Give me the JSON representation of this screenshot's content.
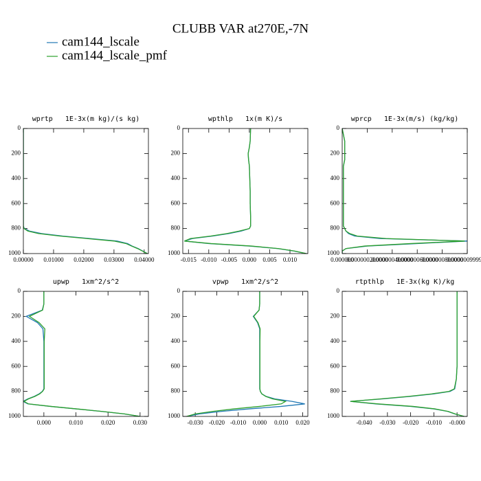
{
  "title": "CLUBB VAR at270E,-7N",
  "chart_data": [
    {
      "type": "line",
      "title": "wprtp   1E-3x(m kg)/(s kg)",
      "y": [
        0,
        100,
        150,
        200,
        250,
        300,
        400,
        500,
        600,
        700,
        780,
        800,
        820,
        840,
        860,
        880,
        900,
        920,
        940,
        960,
        980,
        1000
      ],
      "series": [
        {
          "name": "cam144_lscale",
          "color": "#1f77b4",
          "values": [
            0,
            0,
            0,
            0,
            0,
            0,
            0,
            0,
            0,
            0,
            0,
            0.0003,
            0.002,
            0.006,
            0.013,
            0.022,
            0.031,
            0.0345,
            0.036,
            0.038,
            0.0395,
            0.041
          ]
        },
        {
          "name": "cam144_lscale_pmf",
          "color": "#2ca02c",
          "values": [
            0,
            0,
            0,
            0,
            0,
            0,
            0,
            0,
            0,
            0,
            0,
            0.0002,
            0.0015,
            0.005,
            0.012,
            0.021,
            0.03,
            0.034,
            0.0358,
            0.0378,
            0.0394,
            0.041
          ]
        }
      ],
      "xlim": [
        0,
        0.0414
      ],
      "xticks": [
        {
          "value": 0,
          "label": "0.00000"
        },
        {
          "value": 0.01,
          "label": "0.01000"
        },
        {
          "value": 0.02,
          "label": "0.02000"
        },
        {
          "value": 0.03,
          "label": "0.03000"
        },
        {
          "value": 0.04,
          "label": "0.04000"
        }
      ],
      "ylim": [
        1000,
        0
      ],
      "yticks": [
        0,
        200,
        400,
        600,
        800,
        1000
      ]
    },
    {
      "type": "line",
      "title": "wpthlp   1x(m K)/s",
      "y": [
        0,
        100,
        150,
        200,
        250,
        300,
        400,
        500,
        600,
        700,
        780,
        800,
        820,
        840,
        860,
        880,
        900,
        920,
        940,
        960,
        980,
        1000
      ],
      "series": [
        {
          "name": "cam144_lscale",
          "color": "#1f77b4",
          "values": [
            0.0003,
            0.0002,
            0.0,
            -0.0003,
            -0.0002,
            0.0,
            0.0001,
            0.0002,
            0.0002,
            0.0003,
            0.0003,
            0.0,
            -0.002,
            -0.005,
            -0.009,
            -0.014,
            -0.016,
            -0.01,
            0.0,
            0.007,
            0.011,
            0.014
          ]
        },
        {
          "name": "cam144_lscale_pmf",
          "color": "#2ca02c",
          "values": [
            0.0003,
            0.0002,
            0.0,
            -0.0003,
            -0.0002,
            0.0,
            0.0001,
            0.0002,
            0.0002,
            0.0003,
            0.0003,
            0.0,
            -0.0025,
            -0.0055,
            -0.0095,
            -0.0145,
            -0.016,
            -0.0095,
            0.0005,
            0.0072,
            0.0112,
            0.014
          ]
        }
      ],
      "xlim": [
        -0.0164,
        0.0144
      ],
      "xticks": [
        -0.015,
        {
          "value": -0.01,
          "label": "-0.010"
        },
        -0.005,
        {
          "value": 0,
          "label": "0.000"
        },
        0.005,
        {
          "value": 0.01,
          "label": "0.010"
        }
      ],
      "ylim": [
        1000,
        0
      ],
      "yticks": [
        0,
        200,
        400,
        600,
        800,
        1000
      ]
    },
    {
      "type": "line",
      "title": "wprcp   1E-3x(m/s) (kg/kg)",
      "y": [
        0,
        100,
        150,
        200,
        250,
        300,
        400,
        500,
        600,
        700,
        780,
        800,
        820,
        840,
        860,
        880,
        900,
        920,
        940,
        960,
        980,
        1000
      ],
      "series": [
        {
          "name": "cam144_lscale",
          "color": "#1f77b4",
          "values": [
            0,
            2e-08,
            2e-08,
            2e-08,
            2e-08,
            1e-08,
            1e-08,
            1e-08,
            1e-08,
            1e-08,
            1e-08,
            2e-08,
            3e-08,
            5e-08,
            1e-07,
            3e-07,
            1e-06,
            6e-07,
            2e-07,
            3e-08,
            0,
            0
          ]
        },
        {
          "name": "cam144_lscale_pmf",
          "color": "#2ca02c",
          "values": [
            0,
            2e-08,
            2e-08,
            2e-08,
            2e-08,
            1e-08,
            1e-08,
            1e-08,
            1e-08,
            1e-08,
            1e-08,
            2e-08,
            3e-08,
            6e-08,
            1.2e-07,
            3.5e-07,
            9.8e-07,
            5.5e-07,
            1.8e-07,
            3e-08,
            0,
            0
          ]
        }
      ],
      "xlim": [
        0,
        1e-06
      ],
      "xticks": [
        {
          "value": 0,
          "label": "0.000000"
        },
        {
          "value": 2e-07,
          "label": "0.000000200000"
        },
        {
          "value": 4e-07,
          "label": "0.000000400000"
        },
        {
          "value": 6e-07,
          "label": "0.000000600000"
        },
        {
          "value": 8e-07,
          "label": "0.000000800000"
        },
        {
          "value": 9.99999e-07,
          "label": "0.000000999999"
        }
      ],
      "ylim": [
        1000,
        0
      ],
      "yticks": [
        0,
        200,
        400,
        600,
        800,
        1000
      ]
    },
    {
      "type": "line",
      "title": "upwp   1xm^2/s^2",
      "y": [
        0,
        100,
        150,
        200,
        250,
        300,
        400,
        500,
        600,
        700,
        780,
        800,
        820,
        840,
        860,
        880,
        900,
        920,
        940,
        960,
        980,
        1000
      ],
      "series": [
        {
          "name": "cam144_lscale",
          "color": "#1f77b4",
          "values": [
            0,
            0,
            -0.0005,
            -0.0055,
            -0.002,
            -0.0003,
            0,
            0,
            0,
            0,
            0,
            -0.0005,
            -0.0015,
            -0.003,
            -0.005,
            -0.0065,
            -0.005,
            0.002,
            0.01,
            0.018,
            0.025,
            0.03
          ]
        },
        {
          "name": "cam144_lscale_pmf",
          "color": "#2ca02c",
          "values": [
            0,
            0,
            -0.0004,
            -0.0045,
            -0.0015,
            0.0003,
            0.0001,
            0.0001,
            0.0001,
            0.0001,
            0.0001,
            -0.0004,
            -0.0013,
            -0.0028,
            -0.0048,
            -0.0062,
            -0.0048,
            0.0022,
            0.0102,
            0.0182,
            0.0252,
            0.03
          ]
        }
      ],
      "xlim": [
        -0.0064,
        0.0326
      ],
      "xticks": [
        {
          "value": 0,
          "label": "0.000"
        },
        {
          "value": 0.01,
          "label": "0.010"
        },
        {
          "value": 0.02,
          "label": "0.020"
        },
        {
          "value": 0.03,
          "label": "0.030"
        }
      ],
      "ylim": [
        1000,
        0
      ],
      "yticks": [
        0,
        200,
        400,
        600,
        800,
        1000
      ]
    },
    {
      "type": "line",
      "title": "vpwp   1xm^2/s^2",
      "y": [
        0,
        100,
        150,
        200,
        250,
        300,
        400,
        500,
        600,
        700,
        780,
        800,
        820,
        840,
        860,
        880,
        900,
        920,
        940,
        960,
        980,
        1000
      ],
      "series": [
        {
          "name": "cam144_lscale",
          "color": "#1f77b4",
          "values": [
            0,
            0,
            -0.0003,
            -0.003,
            -0.001,
            0,
            0,
            0,
            0,
            0,
            0,
            0.0003,
            0.001,
            0.003,
            0.007,
            0.015,
            0.021,
            0.01,
            -0.005,
            -0.018,
            -0.028,
            -0.034
          ]
        },
        {
          "name": "cam144_lscale_pmf",
          "color": "#2ca02c",
          "values": [
            0,
            0,
            -0.0003,
            -0.0028,
            -0.0008,
            0.0002,
            0.0001,
            0.0001,
            0.0001,
            0.0001,
            0.0001,
            0.0003,
            0.001,
            0.0028,
            0.006,
            0.012,
            0.01,
            0.0,
            -0.012,
            -0.022,
            -0.03,
            -0.034
          ]
        }
      ],
      "xlim": [
        -0.0358,
        0.0224
      ],
      "xticks": [
        {
          "value": -0.03,
          "label": "-0.030"
        },
        {
          "value": -0.02,
          "label": "-0.020"
        },
        {
          "value": -0.01,
          "label": "-0.010"
        },
        {
          "value": 0,
          "label": "0.000"
        },
        {
          "value": 0.01,
          "label": "0.010"
        },
        {
          "value": 0.02,
          "label": "0.020"
        }
      ],
      "ylim": [
        1000,
        0
      ],
      "yticks": [
        0,
        200,
        400,
        600,
        800,
        1000
      ]
    },
    {
      "type": "line",
      "title": "rtpthlp   1E-3x(kg K)/kg",
      "y": [
        0,
        100,
        150,
        200,
        250,
        300,
        400,
        500,
        600,
        700,
        780,
        800,
        820,
        840,
        860,
        880,
        900,
        920,
        940,
        960,
        980,
        1000
      ],
      "series": [
        {
          "name": "cam144_lscale",
          "color": "#1f77b4",
          "values": [
            0,
            0,
            0,
            0,
            0,
            0,
            0,
            0,
            0,
            -0.0003,
            -0.001,
            -0.003,
            -0.01,
            -0.02,
            -0.032,
            -0.046,
            -0.035,
            -0.02,
            -0.01,
            -0.004,
            -0.001,
            0.003
          ]
        },
        {
          "name": "cam144_lscale_pmf",
          "color": "#2ca02c",
          "values": [
            0,
            0,
            0,
            0,
            0,
            0,
            0,
            0,
            0,
            -0.0003,
            -0.0012,
            -0.0035,
            -0.011,
            -0.021,
            -0.033,
            -0.046,
            -0.034,
            -0.019,
            -0.0095,
            -0.0038,
            -0.0008,
            0.003
          ]
        }
      ],
      "xlim": [
        -0.0495,
        0.0044
      ],
      "xticks": [
        {
          "value": -0.04,
          "label": "-0.040"
        },
        {
          "value": -0.03,
          "label": "-0.030"
        },
        {
          "value": -0.02,
          "label": "-0.020"
        },
        {
          "value": -0.01,
          "label": "-0.010"
        },
        {
          "value": 0,
          "label": "-0.000"
        }
      ],
      "ylim": [
        1000,
        0
      ],
      "yticks": [
        0,
        200,
        400,
        600,
        800,
        1000
      ]
    }
  ]
}
